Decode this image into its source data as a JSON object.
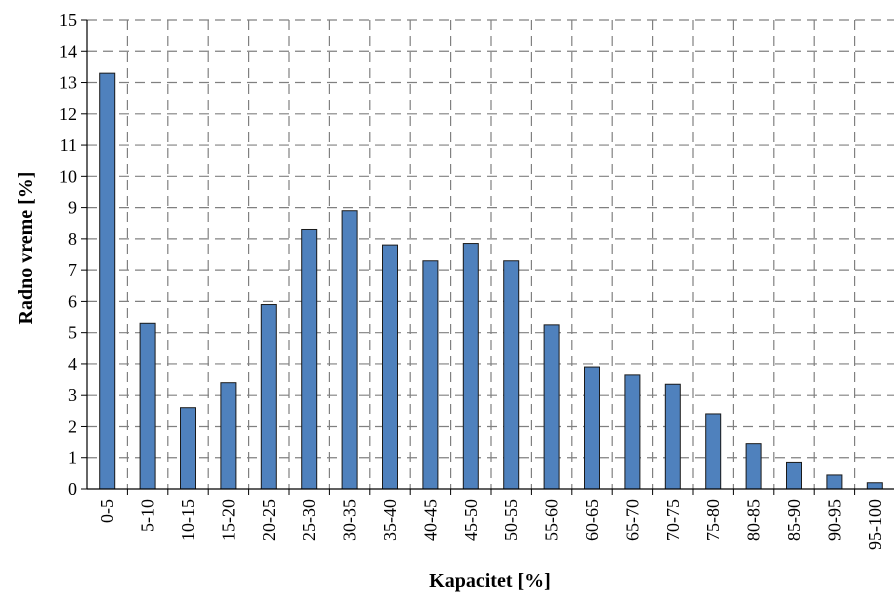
{
  "chart_data": {
    "type": "bar",
    "title": "",
    "xlabel": "Kapacitet [%]",
    "ylabel": "Radno vreme [%]",
    "ylim": [
      0,
      15
    ],
    "yticks": [
      0,
      1,
      2,
      3,
      4,
      5,
      6,
      7,
      8,
      9,
      10,
      11,
      12,
      13,
      14,
      15
    ],
    "grid": true,
    "categories": [
      "0-5",
      "5-10",
      "10-15",
      "15-20",
      "20-25",
      "25-30",
      "30-35",
      "35-40",
      "40-45",
      "45-50",
      "50-55",
      "55-60",
      "60-65",
      "65-70",
      "70-75",
      "75-80",
      "80-85",
      "85-90",
      "90-95",
      "95-100"
    ],
    "values": [
      13.3,
      5.3,
      2.6,
      3.4,
      5.9,
      8.3,
      8.9,
      7.8,
      7.3,
      7.85,
      7.3,
      5.25,
      3.9,
      3.65,
      3.35,
      2.4,
      1.45,
      0.85,
      0.45,
      0.2
    ],
    "colors": {
      "bar": "#4f81bd",
      "bar_stroke": "#1a1a1a",
      "grid": "#808080",
      "axis": "#000000"
    }
  }
}
